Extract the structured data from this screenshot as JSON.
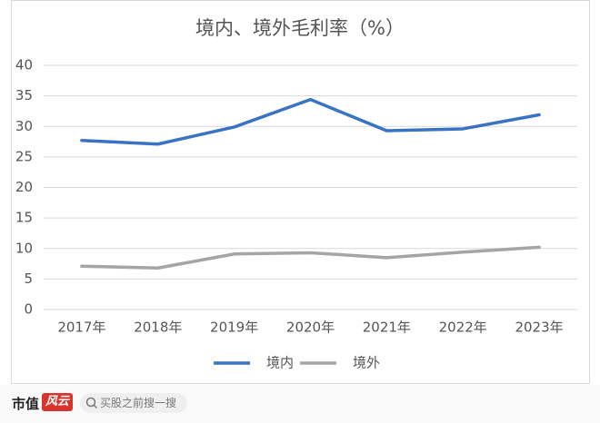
{
  "chart_data": {
    "type": "line",
    "title": "境内、境外毛利率（%）",
    "categories": [
      "2017年",
      "2018年",
      "2019年",
      "2020年",
      "2021年",
      "2022年",
      "2023年"
    ],
    "series": [
      {
        "name": "境内",
        "color": "#3a73c4",
        "values": [
          27.7,
          27.1,
          29.9,
          34.4,
          29.3,
          29.6,
          31.9
        ]
      },
      {
        "name": "境外",
        "color": "#a5a5a5",
        "values": [
          7.1,
          6.8,
          9.1,
          9.3,
          8.5,
          9.4,
          10.2
        ]
      }
    ],
    "ylim": [
      0,
      40
    ],
    "yticks": [
      0,
      5,
      10,
      15,
      20,
      25,
      30,
      35,
      40
    ],
    "grid": true,
    "legend": "bottom"
  },
  "footer": {
    "brand": "市值",
    "logo": "风云",
    "search": "买股之前搜一搜"
  }
}
